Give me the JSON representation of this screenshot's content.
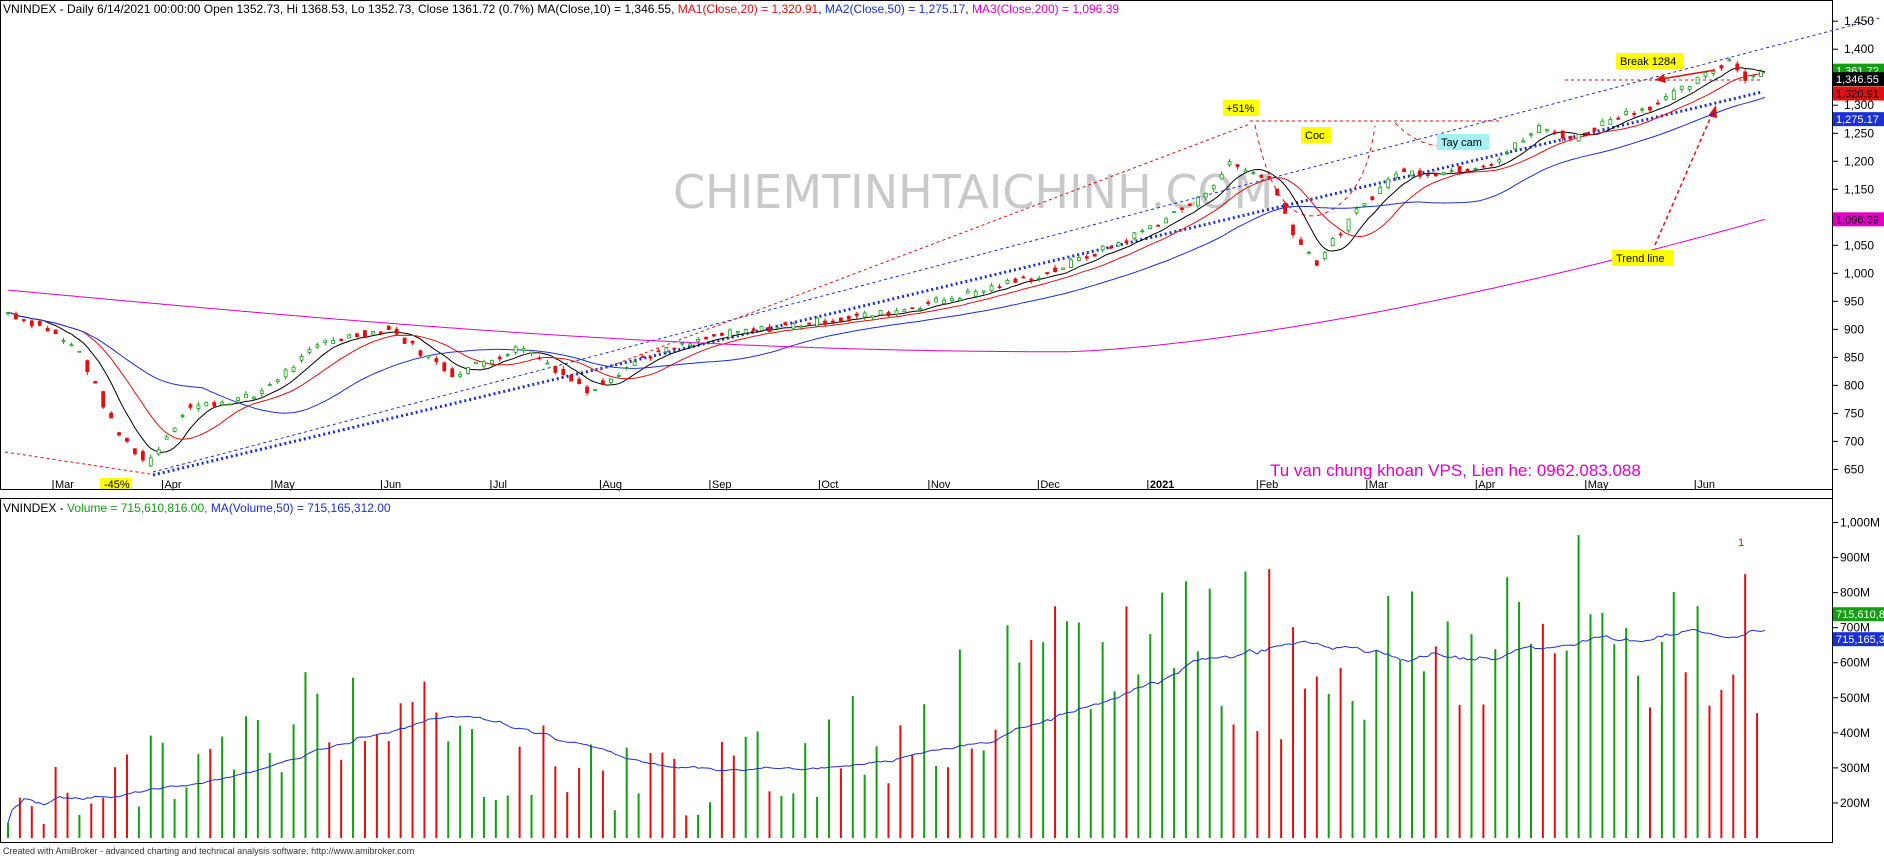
{
  "header": {
    "price": {
      "lead": "VNINDEX - Daily 6/14/2021 00:00:00 Open 1352.73, Hi 1368.53, Lo 1352.73, Close 1361.72 (0.7%) MA(Close,10) = 1,346.55, ",
      "ma1": "MA1(Close,20) = 1,320.91",
      "ma2": "MA2(Close,50) = 1,275.17",
      "ma3": "MA3(Close,200) = 1,096.39"
    },
    "volume": {
      "lead": "VNINDEX - ",
      "vol": "Volume = 715,610,816.00, ",
      "ma": "MA(Volume,50) = 715,165,312.00"
    }
  },
  "colors": {
    "up": "#12a012",
    "down": "#e01010",
    "ma10": "#000000",
    "ma20": "#e01010",
    "ma50": "#1a2fd6",
    "ma200": "#e000c8",
    "trend": "#1a2fd6",
    "annotation": "#e01010",
    "note_bg": "#ffff00",
    "handle_bg": "#a8f0f8"
  },
  "price_axis": [
    "1,450",
    "1,400",
    "1,350",
    "1,300",
    "1,250",
    "1,200",
    "1,150",
    "1,100",
    "1,050",
    "1,000",
    "950",
    "900",
    "850",
    "800",
    "750",
    "700",
    "650"
  ],
  "volume_axis": [
    "1,000M",
    "900M",
    "800M",
    "700M",
    "600M",
    "500M",
    "400M",
    "300M",
    "200M"
  ],
  "months": [
    "Mar",
    "Apr",
    "May",
    "Jun",
    "Jul",
    "Aug",
    "Sep",
    "Oct",
    "Nov",
    "Dec",
    "2021",
    "Feb",
    "Mar",
    "Apr",
    "May",
    "Jun"
  ],
  "value_tags": [
    {
      "text": "1,361.72",
      "bg": "#12a012",
      "fg": "#ffffff"
    },
    {
      "text": "1,346.55",
      "bg": "#000000",
      "fg": "#ffffff"
    },
    {
      "text": "1,320.91",
      "bg": "#e01010",
      "fg": "#000000"
    },
    {
      "text": "1,275.17",
      "bg": "#1a2fd6",
      "fg": "#ffffff"
    },
    {
      "text": "1,096.39",
      "bg": "#e000c8",
      "fg": "#000000"
    }
  ],
  "volume_tags": [
    {
      "text": "715,610,8",
      "bg": "#12a012",
      "fg": "#ffffff"
    },
    {
      "text": "715,165,3",
      "bg": "#1a2fd6",
      "fg": "#ffffff"
    }
  ],
  "annotations": {
    "gain": "+51%",
    "cup": "Coc",
    "handle": "Tay cam",
    "breakout": "Break 1284",
    "trendline": "Trend line",
    "loss": "-45%",
    "volume_mark": "1"
  },
  "watermark": "CHIEMTINHTAICHINH.COM",
  "contact": "Tu van chung khoan VPS, Lien he: 0962.083.088",
  "footer": "Created with AmiBroker - advanced charting and technical analysis software. http://www.amibroker.com",
  "chart_data": [
    {
      "type": "candlestick",
      "title": "VNINDEX - Daily",
      "ylim": [
        640,
        1470
      ],
      "x": [
        "2020-03",
        "2020-04",
        "2020-05",
        "2020-06",
        "2020-07",
        "2020-08",
        "2020-09",
        "2020-10",
        "2020-11",
        "2020-12",
        "2021-01",
        "2021-02",
        "2021-03",
        "2021-04",
        "2021-05",
        "2021-06"
      ],
      "close_approx": [
        870,
        700,
        800,
        870,
        820,
        850,
        880,
        920,
        990,
        1080,
        1180,
        1110,
        1170,
        1230,
        1300,
        1362
      ],
      "last_bar": {
        "date": "6/14/2021",
        "open": 1352.73,
        "high": 1368.53,
        "low": 1352.73,
        "close": 1361.72,
        "change_pct": 0.7
      },
      "series": [
        {
          "name": "MA(Close,10)",
          "last": 1346.55
        },
        {
          "name": "MA1(Close,20)",
          "last": 1320.91
        },
        {
          "name": "MA2(Close,50)",
          "last": 1275.17
        },
        {
          "name": "MA3(Close,200)",
          "last": 1096.39
        }
      ],
      "grid": false
    },
    {
      "type": "bar",
      "title": "VNINDEX - Volume",
      "ylim": [
        100,
        1050
      ],
      "x": [
        "2020-03",
        "2020-04",
        "2020-05",
        "2020-06",
        "2020-07",
        "2020-08",
        "2020-09",
        "2020-10",
        "2020-11",
        "2020-12",
        "2021-01",
        "2021-02",
        "2021-03",
        "2021-04",
        "2021-05",
        "2021-06"
      ],
      "volume_m_approx": [
        200,
        270,
        330,
        560,
        330,
        300,
        260,
        360,
        450,
        560,
        730,
        620,
        640,
        700,
        680,
        740
      ],
      "series": [
        {
          "name": "Volume",
          "last": 715610816
        },
        {
          "name": "MA(Volume,50)",
          "last": 715165312
        }
      ],
      "grid": false
    }
  ]
}
